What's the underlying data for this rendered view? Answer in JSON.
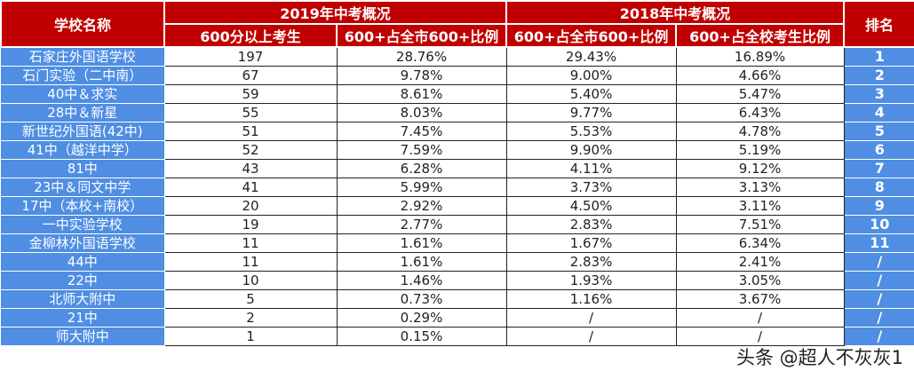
{
  "header": {
    "school_name": "学校名称",
    "group_2019": "2019年中考概况",
    "group_2018": "2018年中考概况",
    "rank": "排名",
    "col_2019_count": "600分以上考生",
    "col_2019_city_ratio": "600+占全市600+比例",
    "col_2018_city_ratio": "600+占全市600+比例",
    "col_2018_school_ratio": "600+占全校考生比例"
  },
  "rows": [
    {
      "name": "石家庄外国语学校",
      "count": "197",
      "r2019": "28.76%",
      "r2018city": "29.43%",
      "r2018school": "16.89%",
      "rank": "1"
    },
    {
      "name": "石门实验（二中南）",
      "count": "67",
      "r2019": "9.78%",
      "r2018city": "9.00%",
      "r2018school": "4.66%",
      "rank": "2"
    },
    {
      "name": "40中＆求实",
      "count": "59",
      "r2019": "8.61%",
      "r2018city": "5.40%",
      "r2018school": "5.47%",
      "rank": "3"
    },
    {
      "name": "28中＆新星",
      "count": "55",
      "r2019": "8.03%",
      "r2018city": "9.77%",
      "r2018school": "6.43%",
      "rank": "4"
    },
    {
      "name": "新世纪外国语(42中)",
      "count": "51",
      "r2019": "7.45%",
      "r2018city": "5.53%",
      "r2018school": "4.78%",
      "rank": "5"
    },
    {
      "name": "41中（越洋中学）",
      "count": "52",
      "r2019": "7.59%",
      "r2018city": "9.90%",
      "r2018school": "5.19%",
      "rank": "6"
    },
    {
      "name": "81中",
      "count": "43",
      "r2019": "6.28%",
      "r2018city": "4.11%",
      "r2018school": "9.12%",
      "rank": "7"
    },
    {
      "name": "23中＆同文中学",
      "count": "41",
      "r2019": "5.99%",
      "r2018city": "3.73%",
      "r2018school": "3.13%",
      "rank": "8"
    },
    {
      "name": "17中（本校+南校）",
      "count": "20",
      "r2019": "2.92%",
      "r2018city": "4.50%",
      "r2018school": "3.11%",
      "rank": "9"
    },
    {
      "name": "一中实验学校",
      "count": "19",
      "r2019": "2.77%",
      "r2018city": "2.83%",
      "r2018school": "7.51%",
      "rank": "10"
    },
    {
      "name": "金柳林外国语学校",
      "count": "11",
      "r2019": "1.61%",
      "r2018city": "1.67%",
      "r2018school": "6.34%",
      "rank": "11"
    },
    {
      "name": "44中",
      "count": "11",
      "r2019": "1.61%",
      "r2018city": "2.83%",
      "r2018school": "2.41%",
      "rank": "/"
    },
    {
      "name": "22中",
      "count": "10",
      "r2019": "1.46%",
      "r2018city": "1.93%",
      "r2018school": "3.05%",
      "rank": "/"
    },
    {
      "name": "北师大附中",
      "count": "5",
      "r2019": "0.73%",
      "r2018city": "1.16%",
      "r2018school": "3.67%",
      "rank": "/"
    },
    {
      "name": "21中",
      "count": "2",
      "r2019": "0.29%",
      "r2018city": "/",
      "r2018school": "/",
      "rank": "/"
    },
    {
      "name": "师大附中",
      "count": "1",
      "r2019": "0.15%",
      "r2018city": "/",
      "r2018school": "/",
      "rank": "/"
    }
  ],
  "watermark": "头条 @超人不灰灰1"
}
